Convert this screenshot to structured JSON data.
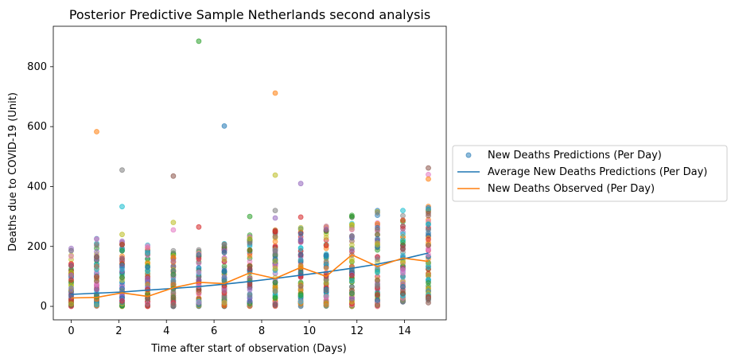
{
  "chart_data": {
    "type": "scatter",
    "title": "Posterior Predictive Sample Netherlands second analysis",
    "xlabel": "Time after start of observation (Days)",
    "ylabel": "Deaths due to COVID-19 (Unit)",
    "xlim": [
      -0.75,
      15.75
    ],
    "ylim": [
      -45,
      935
    ],
    "xticks": [
      0,
      2,
      4,
      6,
      8,
      10,
      12,
      14
    ],
    "yticks": [
      0,
      200,
      400,
      600,
      800
    ],
    "x_days": [
      0,
      1.07,
      2.14,
      3.21,
      4.29,
      5.36,
      6.43,
      7.5,
      8.57,
      9.64,
      10.71,
      11.79,
      12.86,
      13.93,
      15
    ],
    "grid": false,
    "legend_position": "right",
    "legend": [
      "New Deaths Predictions (Per Day)",
      "Average New Deaths Predictions (Per Day)",
      "New Deaths Observed (Per Day)"
    ],
    "series": [
      {
        "name": "New Deaths Predictions (Per Day)",
        "kind": "scatter",
        "note_values": "per-day prediction spread: [min, max]",
        "ranges": [
          [
            0,
            195
          ],
          [
            0,
            235
          ],
          [
            0,
            220
          ],
          [
            0,
            208
          ],
          [
            0,
            195
          ],
          [
            0,
            190
          ],
          [
            0,
            220
          ],
          [
            0,
            252
          ],
          [
            0,
            255
          ],
          [
            0,
            265
          ],
          [
            0,
            280
          ],
          [
            0,
            310
          ],
          [
            0,
            325
          ],
          [
            15,
            310
          ],
          [
            20,
            340
          ]
        ],
        "outliers": [
          {
            "x": 1.07,
            "y": 583,
            "color": "#ff7f0e"
          },
          {
            "x": 2.14,
            "y": 455,
            "color": "#7f7f7f"
          },
          {
            "x": 2.14,
            "y": 333,
            "color": "#17becf"
          },
          {
            "x": 2.14,
            "y": 240,
            "color": "#bcbd22"
          },
          {
            "x": 4.29,
            "y": 435,
            "color": "#8c564b"
          },
          {
            "x": 4.29,
            "y": 280,
            "color": "#bcbd22"
          },
          {
            "x": 4.29,
            "y": 255,
            "color": "#e377c2"
          },
          {
            "x": 5.36,
            "y": 885,
            "color": "#2ca02c"
          },
          {
            "x": 5.36,
            "y": 265,
            "color": "#d62728"
          },
          {
            "x": 6.43,
            "y": 602,
            "color": "#1f77b4"
          },
          {
            "x": 7.5,
            "y": 300,
            "color": "#2ca02c"
          },
          {
            "x": 8.57,
            "y": 712,
            "color": "#ff7f0e"
          },
          {
            "x": 8.57,
            "y": 438,
            "color": "#bcbd22"
          },
          {
            "x": 8.57,
            "y": 320,
            "color": "#7f7f7f"
          },
          {
            "x": 8.57,
            "y": 295,
            "color": "#9467bd"
          },
          {
            "x": 9.64,
            "y": 410,
            "color": "#9467bd"
          },
          {
            "x": 9.64,
            "y": 298,
            "color": "#d62728"
          },
          {
            "x": 13.93,
            "y": 320,
            "color": "#17becf"
          },
          {
            "x": 15,
            "y": 462,
            "color": "#8c564b"
          },
          {
            "x": 15,
            "y": 440,
            "color": "#e377c2"
          },
          {
            "x": 15,
            "y": 425,
            "color": "#ff7f0e"
          },
          {
            "x": 15,
            "y": 12,
            "color": "#8c564b"
          }
        ]
      },
      {
        "name": "Average New Deaths Predictions (Per Day)",
        "kind": "line",
        "color": "#1f77b4",
        "values": [
          40,
          44,
          48,
          54,
          60,
          66,
          74,
          83,
          93,
          104,
          115,
          127,
          141,
          158,
          178
        ]
      },
      {
        "name": "New Deaths Observed (Per Day)",
        "kind": "line",
        "color": "#ff7f0e",
        "values": [
          28,
          30,
          45,
          33,
          62,
          80,
          76,
          112,
          93,
          130,
          100,
          172,
          133,
          161,
          150
        ]
      }
    ]
  }
}
